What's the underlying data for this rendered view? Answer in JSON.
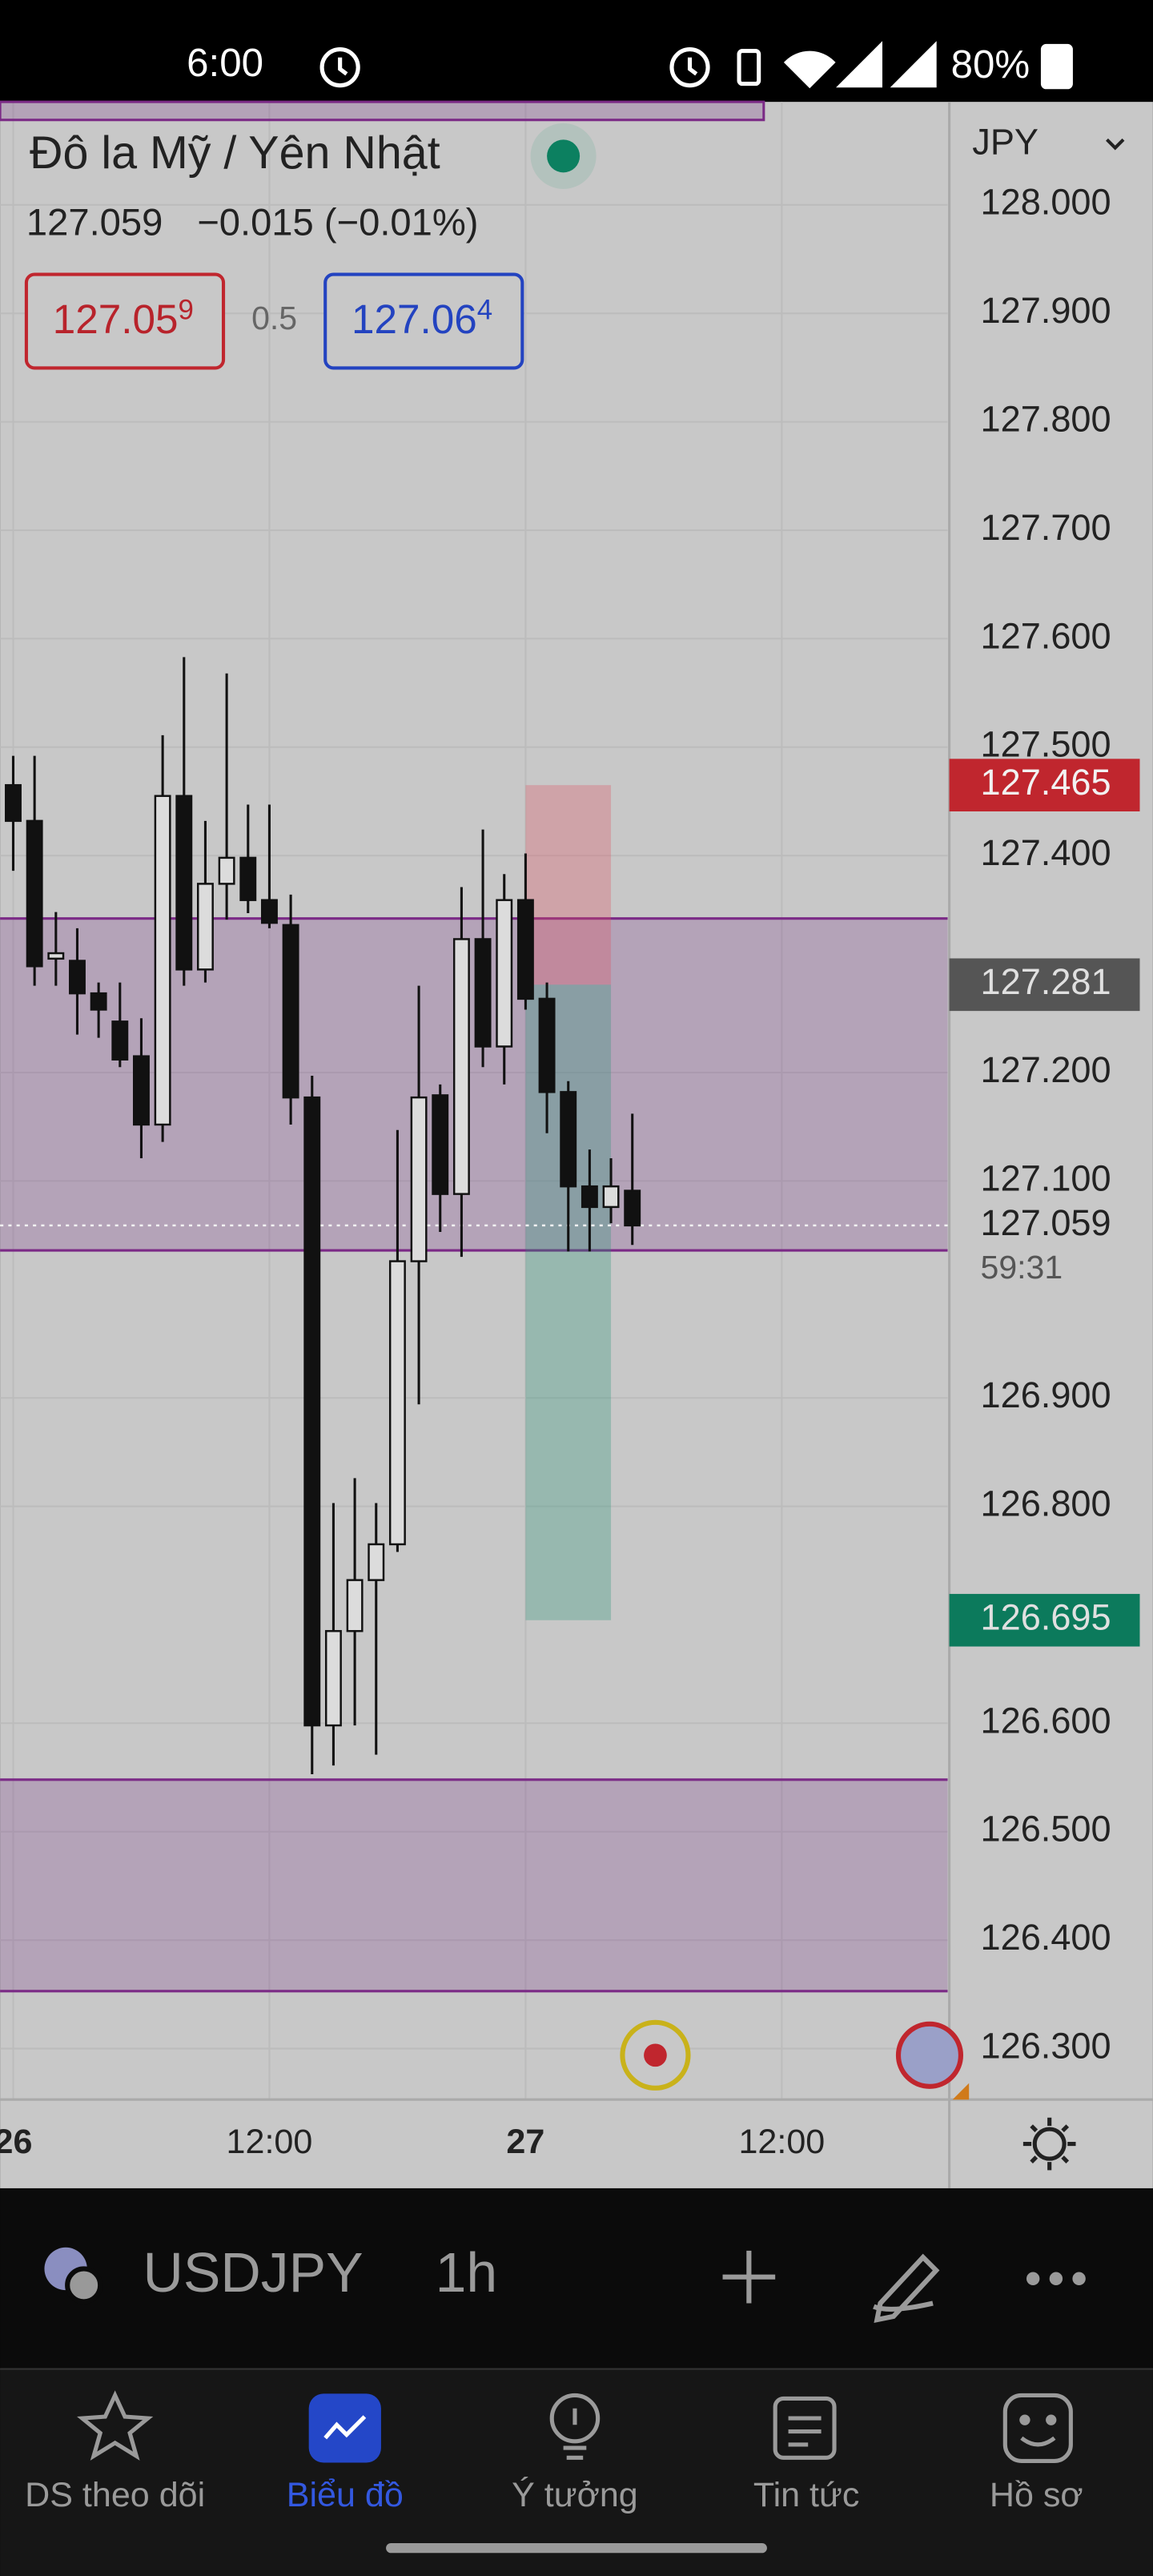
{
  "status_bar": {
    "time": "6:00",
    "battery": "80%"
  },
  "header": {
    "title": "Đô la Mỹ / Yên Nhật",
    "price": "127.059",
    "change": "−0.015 (−0.01%)",
    "bid": {
      "main": "127.05",
      "pip": "9"
    },
    "spread": "0.5",
    "ask": {
      "main": "127.06",
      "pip": "4"
    }
  },
  "chart_data": {
    "type": "candlestick",
    "currency": "JPY",
    "x": [
      0,
      1,
      2,
      3,
      4,
      5,
      6,
      7,
      8,
      9,
      10,
      11,
      12,
      13,
      14,
      15,
      16,
      17,
      18,
      19,
      20,
      21,
      22,
      23,
      24,
      25,
      26,
      27,
      28,
      29
    ],
    "open": [
      127.465,
      127.432,
      127.305,
      127.303,
      127.273,
      127.247,
      127.215,
      127.152,
      127.455,
      127.295,
      127.374,
      127.398,
      127.359,
      127.336,
      127.177,
      126.598,
      126.685,
      126.732,
      126.765,
      127.026,
      127.179,
      127.088,
      127.323,
      127.224,
      127.359,
      127.268,
      127.182,
      127.095,
      127.076,
      127.091
    ],
    "high": [
      127.492,
      127.492,
      127.348,
      127.333,
      127.283,
      127.283,
      127.25,
      127.511,
      127.583,
      127.432,
      127.568,
      127.447,
      127.447,
      127.364,
      127.197,
      126.803,
      126.826,
      126.803,
      127.147,
      127.28,
      127.189,
      127.371,
      127.424,
      127.383,
      127.402,
      127.283,
      127.192,
      127.129,
      127.121,
      127.162
    ],
    "low": [
      127.386,
      127.28,
      127.28,
      127.235,
      127.232,
      127.205,
      127.121,
      127.136,
      127.28,
      127.283,
      127.341,
      127.347,
      127.333,
      127.152,
      126.553,
      126.561,
      126.598,
      126.571,
      126.758,
      126.894,
      127.053,
      127.03,
      127.205,
      127.189,
      127.258,
      127.144,
      127.035,
      127.035,
      127.061,
      127.041
    ],
    "close": [
      127.432,
      127.298,
      127.31,
      127.273,
      127.258,
      127.212,
      127.152,
      127.455,
      127.295,
      127.374,
      127.398,
      127.359,
      127.338,
      127.177,
      126.598,
      126.685,
      126.732,
      126.765,
      127.026,
      127.177,
      127.088,
      127.323,
      127.224,
      127.359,
      127.268,
      127.182,
      127.095,
      127.076,
      127.095,
      127.059
    ],
    "up_color": "#dcdcdc",
    "down_color": "#111111",
    "xlim": [
      -0.615,
      43.77
    ],
    "xticks": [
      {
        "value": 0,
        "label": "26"
      },
      {
        "value": 12,
        "label": "12:00"
      },
      {
        "value": 24,
        "label": "27"
      },
      {
        "value": 36,
        "label": "12:00"
      }
    ],
    "ylim": [
      126.253,
      128.095
    ],
    "yticks": [
      {
        "value": 128.0,
        "label": "128.000"
      },
      {
        "value": 127.9,
        "label": "127.900"
      },
      {
        "value": 127.8,
        "label": "127.800"
      },
      {
        "value": 127.7,
        "label": "127.700"
      },
      {
        "value": 127.6,
        "label": "127.600"
      },
      {
        "value": 127.5,
        "label": "127.500"
      },
      {
        "value": 127.4,
        "label": "127.400"
      },
      {
        "value": 127.2,
        "label": "127.200"
      },
      {
        "value": 127.1,
        "label": "127.100"
      },
      {
        "value": 126.9,
        "label": "126.900"
      },
      {
        "value": 126.8,
        "label": "126.800"
      },
      {
        "value": 126.6,
        "label": "126.600"
      },
      {
        "value": 126.5,
        "label": "126.500"
      },
      {
        "value": 126.4,
        "label": "126.400"
      },
      {
        "value": 126.3,
        "label": "126.300"
      }
    ],
    "grid": true,
    "zones": [
      {
        "top": 127.342,
        "bottom": 127.036
      },
      {
        "top": 126.548,
        "bottom": 126.353
      }
    ],
    "position": {
      "start": 24,
      "end": 28,
      "entry": 127.281,
      "stop": 127.465,
      "target": 126.695
    },
    "last_price": 127.059,
    "countdown": "59:31"
  },
  "toolbar": {
    "symbol": "USDJPY",
    "interval": "1h"
  },
  "nav": {
    "items": [
      "DS theo dõi",
      "Biểu đồ",
      "Ý tưởng",
      "Tin tức",
      "Hồ sơ"
    ],
    "active": 1
  }
}
